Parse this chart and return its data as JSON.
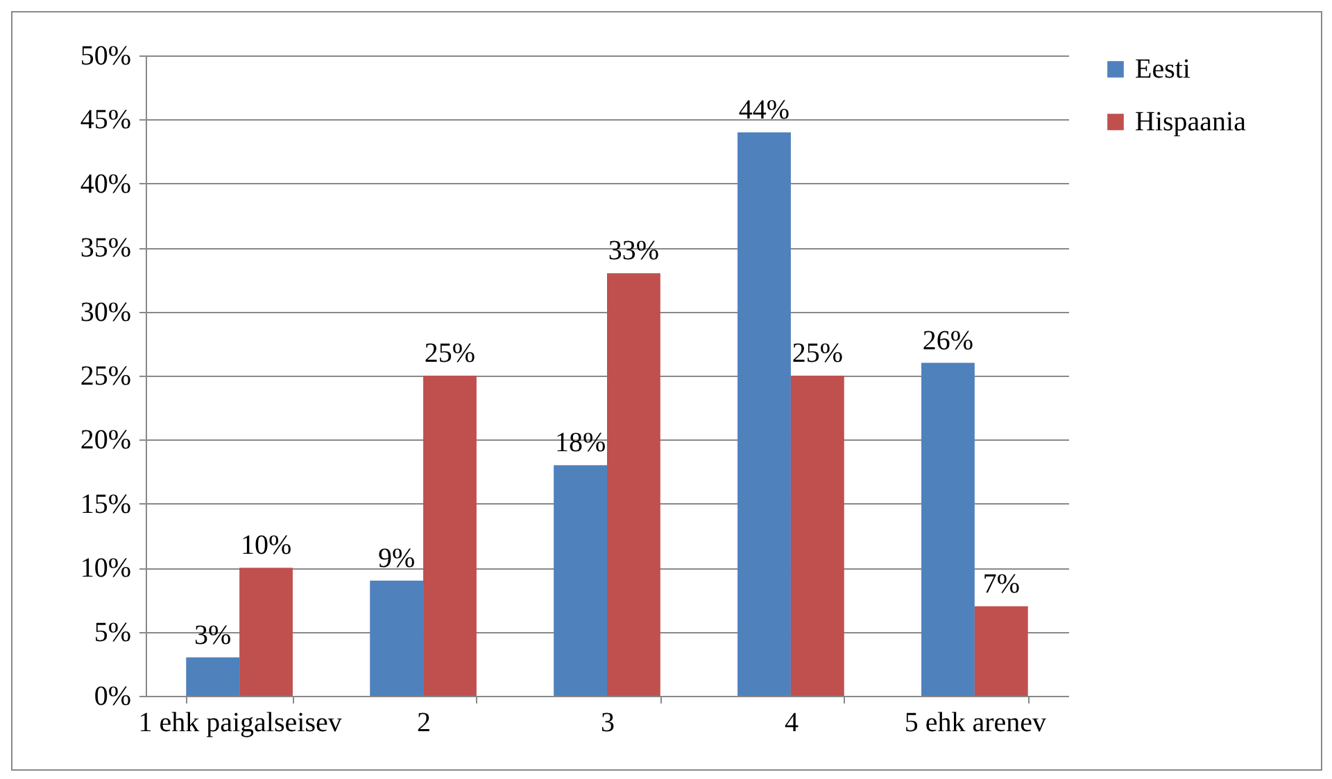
{
  "chart_data": {
    "type": "bar",
    "categories": [
      "1 ehk paigalseisev",
      "2",
      "3",
      "4",
      "5 ehk arenev"
    ],
    "series": [
      {
        "name": "Eesti",
        "color": "#4f81bd",
        "values": [
          3,
          9,
          18,
          44,
          26
        ],
        "value_labels": [
          "3%",
          "9%",
          "18%",
          "44%",
          "26%"
        ]
      },
      {
        "name": "Hispaania",
        "color": "#c0504d",
        "values": [
          10,
          25,
          33,
          25,
          7
        ],
        "value_labels": [
          "10%",
          "25%",
          "33%",
          "25%",
          "7%"
        ]
      }
    ],
    "ylim": [
      0,
      50
    ],
    "yticks": [
      {
        "value": 0,
        "label": "0%"
      },
      {
        "value": 5,
        "label": "5%"
      },
      {
        "value": 10,
        "label": "10%"
      },
      {
        "value": 15,
        "label": "15%"
      },
      {
        "value": 20,
        "label": "20%"
      },
      {
        "value": 25,
        "label": "25%"
      },
      {
        "value": 30,
        "label": "30%"
      },
      {
        "value": 35,
        "label": "35%"
      },
      {
        "value": 40,
        "label": "40%"
      },
      {
        "value": 45,
        "label": "45%"
      },
      {
        "value": 50,
        "label": "50%"
      }
    ],
    "grid": "y",
    "legend": "right"
  }
}
